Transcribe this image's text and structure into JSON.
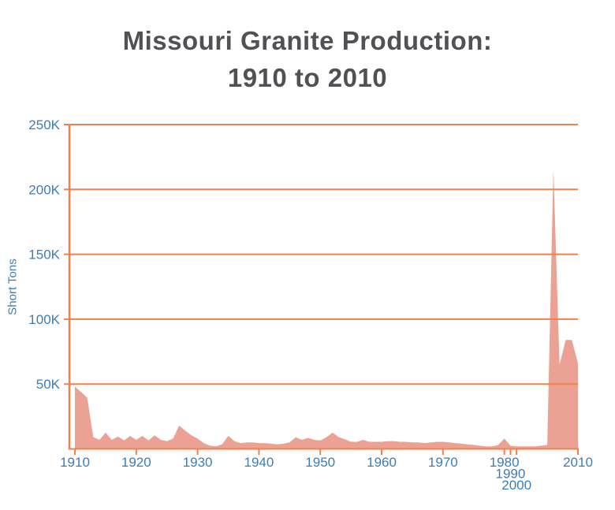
{
  "header": {
    "title_line1": "Missouri Granite Production:",
    "title_line2": "1910 to 2010"
  },
  "chart_data": {
    "type": "area",
    "title": "Missouri Granite Production: 1910 to 2010",
    "xlabel": "",
    "ylabel": "Short Tons",
    "ylim": [
      0,
      250000
    ],
    "x_axis_type": "ordinal",
    "grid": true,
    "legend": false,
    "colors": {
      "area_fill": "#eba294",
      "axis_and_grid": "#f0804c",
      "tick_label": "#3d7db8",
      "title_text": "#4f5154",
      "background": "#ffffff"
    },
    "y_ticks": [
      {
        "label": "250K",
        "value": 250000
      },
      {
        "label": "200K",
        "value": 200000
      },
      {
        "label": "150K",
        "value": 150000
      },
      {
        "label": "100K",
        "value": 100000
      },
      {
        "label": "50K",
        "value": 50000
      }
    ],
    "x_ticks": [
      {
        "label": "1910",
        "year": 1910,
        "row": 0
      },
      {
        "label": "1920",
        "year": 1920,
        "row": 0
      },
      {
        "label": "1930",
        "year": 1930,
        "row": 0
      },
      {
        "label": "1940",
        "year": 1940,
        "row": 0
      },
      {
        "label": "1950",
        "year": 1950,
        "row": 0
      },
      {
        "label": "1960",
        "year": 1960,
        "row": 0
      },
      {
        "label": "1970",
        "year": 1970,
        "row": 0
      },
      {
        "label": "1980",
        "year": 1980,
        "row": 0
      },
      {
        "label": "1990",
        "year": 1990,
        "row": 1
      },
      {
        "label": "2000",
        "year": 2000,
        "row": 2
      },
      {
        "label": "2010",
        "year": 2010,
        "row": 0
      }
    ],
    "years": [
      1910,
      1911,
      1912,
      1913,
      1914,
      1915,
      1916,
      1917,
      1918,
      1919,
      1920,
      1921,
      1922,
      1923,
      1924,
      1925,
      1926,
      1927,
      1928,
      1929,
      1930,
      1931,
      1932,
      1933,
      1934,
      1935,
      1936,
      1937,
      1938,
      1939,
      1940,
      1941,
      1942,
      1943,
      1944,
      1945,
      1946,
      1947,
      1948,
      1949,
      1950,
      1951,
      1952,
      1953,
      1954,
      1955,
      1956,
      1957,
      1958,
      1959,
      1960,
      1961,
      1962,
      1963,
      1964,
      1965,
      1966,
      1967,
      1968,
      1969,
      1970,
      1971,
      1972,
      1973,
      1974,
      1975,
      1976,
      1977,
      1978,
      1979,
      1980,
      1990,
      2000,
      2001,
      2002,
      2003,
      2004,
      2005,
      2006,
      2007,
      2008,
      2009,
      2010
    ],
    "values": [
      48000,
      44000,
      39500,
      9000,
      7000,
      12500,
      7000,
      9500,
      6500,
      10000,
      7000,
      10000,
      6500,
      10500,
      7000,
      6000,
      8000,
      18000,
      14000,
      10500,
      8000,
      4500,
      2500,
      2000,
      3500,
      10000,
      6000,
      4500,
      5000,
      5000,
      4500,
      4500,
      4000,
      3500,
      4000,
      5000,
      9000,
      7000,
      8500,
      7000,
      6500,
      9000,
      12500,
      9000,
      7500,
      5500,
      5500,
      7000,
      5500,
      5500,
      5500,
      6000,
      6000,
      5500,
      5500,
      5000,
      5000,
      4500,
      5000,
      5500,
      5500,
      5000,
      4500,
      4000,
      3500,
      3000,
      2500,
      2000,
      2000,
      3000,
      8000,
      2500,
      2000,
      2000,
      2000,
      2000,
      2500,
      3000,
      216000,
      65000,
      84000,
      84000,
      66000
    ]
  }
}
